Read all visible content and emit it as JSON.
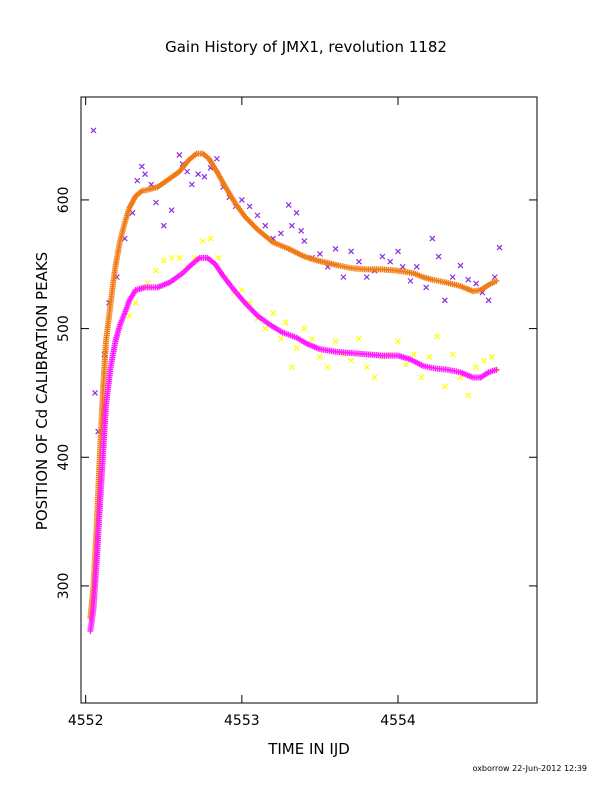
{
  "chart_data": {
    "type": "scatter",
    "title": "Gain History of JMX1, revolution 1182",
    "xlabel": "TIME IN IJD",
    "ylabel": "POSITION OF Cd CALIBRATION PEAKS",
    "xlim": [
      4551.97,
      4554.89
    ],
    "ylim": [
      209,
      680
    ],
    "xticks": [
      4552,
      4553,
      4554
    ],
    "yticks": [
      300,
      400,
      500,
      600
    ],
    "grid": false,
    "legend": "none",
    "footer": "oxborrow 22-Jun-2012 12:39",
    "colors": {
      "orange": "#f07a14",
      "magenta": "#ff1aff",
      "purple": "#8a2be2",
      "yellow": "#ffff00"
    },
    "series": [
      {
        "color": "#f07a14",
        "marker": "plus",
        "style": "smooth",
        "points": [
          [
            4552.03,
            275
          ],
          [
            4552.05,
            300
          ],
          [
            4552.07,
            345
          ],
          [
            4552.09,
            400
          ],
          [
            4552.11,
            450
          ],
          [
            4552.13,
            490
          ],
          [
            4552.16,
            520
          ],
          [
            4552.19,
            548
          ],
          [
            4552.22,
            568
          ],
          [
            4552.25,
            582
          ],
          [
            4552.28,
            594
          ],
          [
            4552.32,
            603
          ],
          [
            4552.36,
            607
          ],
          [
            4552.4,
            608
          ],
          [
            4552.46,
            610
          ],
          [
            4552.52,
            615
          ],
          [
            4552.6,
            622
          ],
          [
            4552.66,
            631
          ],
          [
            4552.71,
            636
          ],
          [
            4552.75,
            636
          ],
          [
            4552.79,
            632
          ],
          [
            4552.84,
            622
          ],
          [
            4552.9,
            609
          ],
          [
            4552.96,
            597
          ],
          [
            4553.02,
            587
          ],
          [
            4553.1,
            577
          ],
          [
            4553.2,
            567
          ],
          [
            4553.3,
            562
          ],
          [
            4553.4,
            556
          ],
          [
            4553.48,
            553
          ],
          [
            4553.55,
            551
          ],
          [
            4553.62,
            549
          ],
          [
            4553.7,
            547
          ],
          [
            4553.8,
            546
          ],
          [
            4553.9,
            546
          ],
          [
            4554.0,
            545
          ],
          [
            4554.1,
            543
          ],
          [
            4554.16,
            540
          ],
          [
            4554.22,
            538
          ],
          [
            4554.3,
            536
          ],
          [
            4554.4,
            533
          ],
          [
            4554.48,
            529
          ],
          [
            4554.53,
            530
          ],
          [
            4554.58,
            534
          ],
          [
            4554.63,
            537
          ]
        ]
      },
      {
        "color": "#ff1aff",
        "marker": "plus",
        "style": "smooth",
        "points": [
          [
            4552.03,
            265
          ],
          [
            4552.05,
            282
          ],
          [
            4552.07,
            318
          ],
          [
            4552.09,
            360
          ],
          [
            4552.11,
            400
          ],
          [
            4552.13,
            440
          ],
          [
            4552.16,
            470
          ],
          [
            4552.19,
            490
          ],
          [
            4552.22,
            503
          ],
          [
            4552.25,
            512
          ],
          [
            4552.28,
            522
          ],
          [
            4552.32,
            530
          ],
          [
            4552.38,
            532
          ],
          [
            4552.46,
            532
          ],
          [
            4552.54,
            536
          ],
          [
            4552.62,
            543
          ],
          [
            4552.68,
            550
          ],
          [
            4552.73,
            555
          ],
          [
            4552.78,
            555
          ],
          [
            4552.83,
            550
          ],
          [
            4552.88,
            541
          ],
          [
            4552.95,
            530
          ],
          [
            4553.02,
            520
          ],
          [
            4553.1,
            510
          ],
          [
            4553.18,
            503
          ],
          [
            4553.26,
            497
          ],
          [
            4553.35,
            493
          ],
          [
            4553.42,
            488
          ],
          [
            4553.5,
            484
          ],
          [
            4553.6,
            482
          ],
          [
            4553.7,
            481
          ],
          [
            4553.8,
            480
          ],
          [
            4553.9,
            479
          ],
          [
            4554.0,
            479
          ],
          [
            4554.08,
            476
          ],
          [
            4554.16,
            471
          ],
          [
            4554.24,
            469
          ],
          [
            4554.32,
            468
          ],
          [
            4554.4,
            466
          ],
          [
            4554.48,
            462
          ],
          [
            4554.53,
            462
          ],
          [
            4554.58,
            466
          ],
          [
            4554.63,
            468
          ]
        ]
      },
      {
        "color": "#8a2be2",
        "marker": "x",
        "style": "scatter",
        "points": [
          [
            4552.05,
            654
          ],
          [
            4552.06,
            450
          ],
          [
            4552.08,
            420
          ],
          [
            4552.12,
            480
          ],
          [
            4552.15,
            520
          ],
          [
            4552.2,
            540
          ],
          [
            4552.25,
            570
          ],
          [
            4552.3,
            590
          ],
          [
            4552.33,
            615
          ],
          [
            4552.36,
            626
          ],
          [
            4552.38,
            620
          ],
          [
            4552.42,
            612
          ],
          [
            4552.45,
            598
          ],
          [
            4552.5,
            580
          ],
          [
            4552.55,
            592
          ],
          [
            4552.6,
            635
          ],
          [
            4552.62,
            628
          ],
          [
            4552.65,
            622
          ],
          [
            4552.68,
            612
          ],
          [
            4552.72,
            620
          ],
          [
            4552.76,
            618
          ],
          [
            4552.8,
            625
          ],
          [
            4552.84,
            632
          ],
          [
            4552.88,
            610
          ],
          [
            4552.92,
            602
          ],
          [
            4552.96,
            595
          ],
          [
            4553.0,
            600
          ],
          [
            4553.05,
            595
          ],
          [
            4553.1,
            588
          ],
          [
            4553.15,
            580
          ],
          [
            4553.2,
            570
          ],
          [
            4553.25,
            574
          ],
          [
            4553.3,
            596
          ],
          [
            4553.32,
            580
          ],
          [
            4553.35,
            590
          ],
          [
            4553.38,
            576
          ],
          [
            4553.4,
            568
          ],
          [
            4553.45,
            555
          ],
          [
            4553.5,
            558
          ],
          [
            4553.55,
            548
          ],
          [
            4553.6,
            562
          ],
          [
            4553.65,
            540
          ],
          [
            4553.7,
            560
          ],
          [
            4553.75,
            552
          ],
          [
            4553.8,
            540
          ],
          [
            4553.85,
            545
          ],
          [
            4553.9,
            556
          ],
          [
            4553.95,
            552
          ],
          [
            4554.0,
            560
          ],
          [
            4554.03,
            548
          ],
          [
            4554.08,
            537
          ],
          [
            4554.12,
            548
          ],
          [
            4554.18,
            532
          ],
          [
            4554.22,
            570
          ],
          [
            4554.26,
            556
          ],
          [
            4554.3,
            522
          ],
          [
            4554.35,
            540
          ],
          [
            4554.4,
            549
          ],
          [
            4554.45,
            538
          ],
          [
            4554.5,
            535
          ],
          [
            4554.54,
            528
          ],
          [
            4554.58,
            522
          ],
          [
            4554.62,
            540
          ],
          [
            4554.65,
            563
          ]
        ]
      },
      {
        "color": "#ffff00",
        "marker": "x",
        "style": "scatter",
        "points": [
          [
            4552.28,
            510
          ],
          [
            4552.32,
            520
          ],
          [
            4552.36,
            532
          ],
          [
            4552.4,
            535
          ],
          [
            4552.45,
            545
          ],
          [
            4552.5,
            553
          ],
          [
            4552.55,
            555
          ],
          [
            4552.6,
            555
          ],
          [
            4552.65,
            548
          ],
          [
            4552.7,
            555
          ],
          [
            4552.75,
            568
          ],
          [
            4552.8,
            570
          ],
          [
            4552.85,
            555
          ],
          [
            4552.9,
            540
          ],
          [
            4552.95,
            528
          ],
          [
            4553.0,
            530
          ],
          [
            4553.05,
            520
          ],
          [
            4553.1,
            508
          ],
          [
            4553.15,
            500
          ],
          [
            4553.2,
            512
          ],
          [
            4553.25,
            492
          ],
          [
            4553.28,
            505
          ],
          [
            4553.32,
            470
          ],
          [
            4553.35,
            485
          ],
          [
            4553.4,
            500
          ],
          [
            4553.45,
            492
          ],
          [
            4553.5,
            478
          ],
          [
            4553.55,
            470
          ],
          [
            4553.6,
            490
          ],
          [
            4553.65,
            480
          ],
          [
            4553.7,
            475
          ],
          [
            4553.75,
            492
          ],
          [
            4553.8,
            470
          ],
          [
            4553.85,
            462
          ],
          [
            4553.9,
            478
          ],
          [
            4553.95,
            480
          ],
          [
            4554.0,
            490
          ],
          [
            4554.05,
            472
          ],
          [
            4554.1,
            480
          ],
          [
            4554.15,
            462
          ],
          [
            4554.2,
            478
          ],
          [
            4554.25,
            494
          ],
          [
            4554.3,
            455
          ],
          [
            4554.35,
            480
          ],
          [
            4554.4,
            462
          ],
          [
            4554.45,
            448
          ],
          [
            4554.5,
            470
          ],
          [
            4554.55,
            475
          ],
          [
            4554.6,
            478
          ],
          [
            4554.63,
            468
          ]
        ]
      }
    ]
  }
}
